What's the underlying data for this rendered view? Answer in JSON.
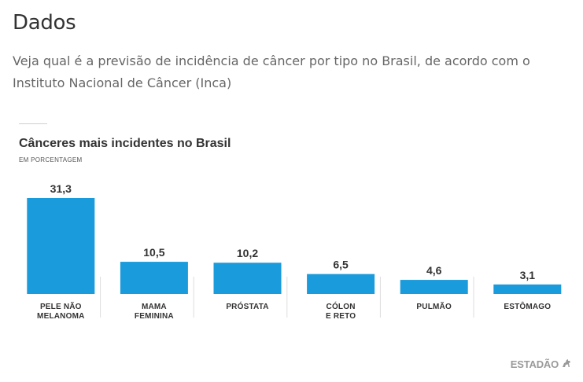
{
  "page": {
    "heading": "Dados",
    "intro": "Veja qual é a previsão de incidência de câncer por tipo no Brasil, de acordo com o Instituto Nacional de Câncer (Inca)"
  },
  "chart_data": {
    "type": "bar",
    "title": "Cânceres mais incidentes no Brasil",
    "subtitle": "EM PORCENTAGEM",
    "categories": [
      [
        "PELE NÃO",
        "MELANOMA"
      ],
      [
        "MAMA",
        "FEMININA"
      ],
      [
        "PRÓSTATA"
      ],
      [
        "CÓLON",
        "E RETO"
      ],
      [
        "PULMÃO"
      ],
      [
        "ESTÔMAGO"
      ]
    ],
    "values": [
      31.3,
      10.5,
      10.2,
      6.5,
      4.6,
      3.1
    ],
    "value_labels": [
      "31,3",
      "10,5",
      "10,2",
      "6,5",
      "4,6",
      "3,1"
    ],
    "ylim": [
      0,
      31.3
    ],
    "grid": false,
    "colors": {
      "bar": "#1a9bdb",
      "separator": "#dddddd",
      "label": "#333333"
    }
  },
  "brand": {
    "name": "ESTADÃO",
    "icon": "horse-rider-icon"
  }
}
